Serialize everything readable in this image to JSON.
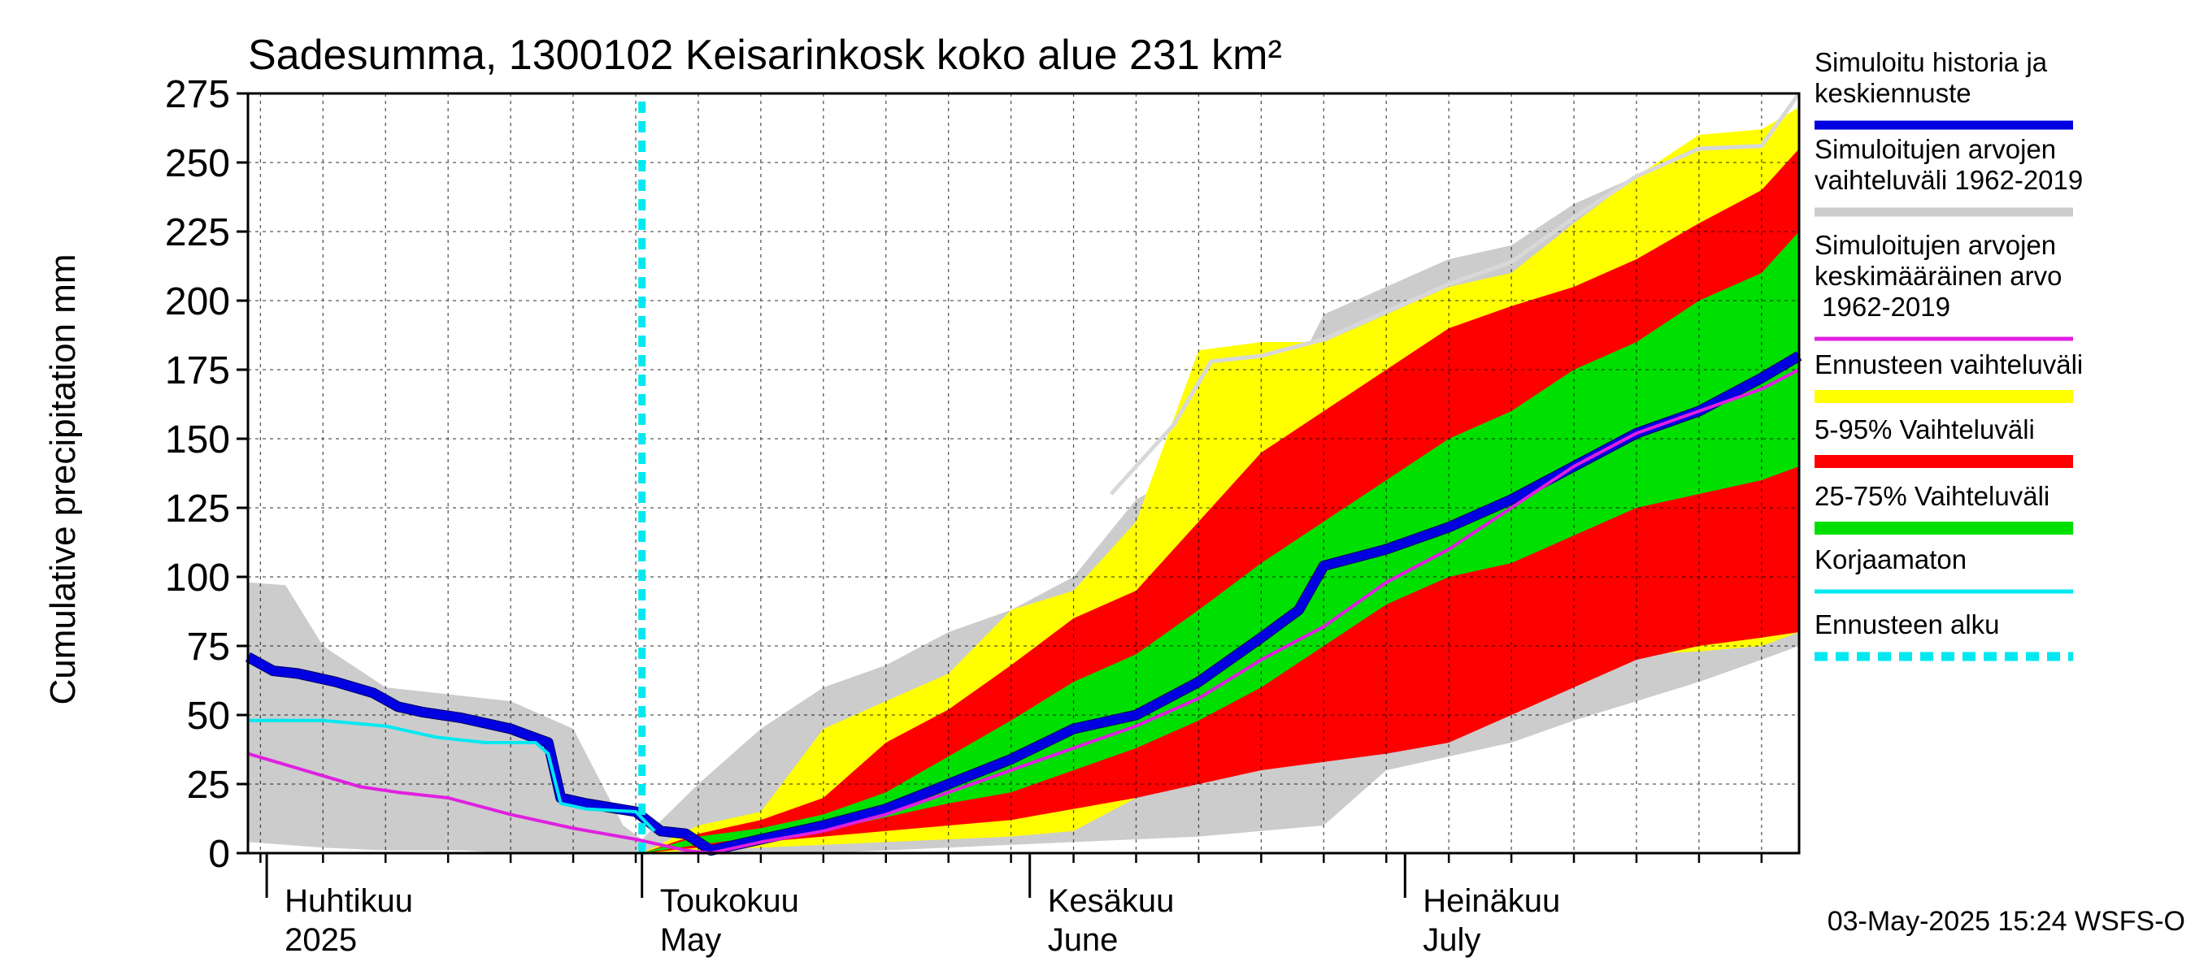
{
  "chart_data": {
    "type": "area",
    "title": "Sadesumma, 1300102 Keisarinkosk koko alue 231 km²",
    "ylabel": "Cumulative precipitation   mm",
    "xlabel": "",
    "ylim": [
      0,
      275
    ],
    "yticks": [
      0,
      25,
      50,
      75,
      100,
      125,
      150,
      175,
      200,
      225,
      250,
      275
    ],
    "x_unit": "day of year 2025",
    "xlim": [
      89,
      213
    ],
    "forecast_start": 120.5,
    "month_labels": [
      {
        "fi": "Huhtikuu",
        "en": "2025",
        "day": 91
      },
      {
        "fi": "Toukokuu",
        "en": "May",
        "day": 121
      },
      {
        "fi": "Kesäkuu",
        "en": "June",
        "day": 152
      },
      {
        "fi": "Heinäkuu",
        "en": "July",
        "day": 182
      }
    ],
    "grid": true,
    "legend_position": "right",
    "timestamp": "03-May-2025 15:24 WSFS-O",
    "legend": [
      {
        "label": "Simuloitu historia ja keskiennuste",
        "color": "#0000e0"
      },
      {
        "label": "Simuloitujen arvojen vaihteluväli 1962-2019",
        "color": "#cccccc"
      },
      {
        "label": "Simuloitujen arvojen keskimääräinen arvo 1962-2019",
        "color": "#e020e0"
      },
      {
        "label": "Ennusteen vaihteluväli",
        "color": "#ffff00"
      },
      {
        "label": "5-95% Vaihteluväli",
        "color": "#ff0000"
      },
      {
        "label": "25-75% Vaihteluväli",
        "color": "#00e000"
      },
      {
        "label": "Korjaamaton",
        "color": "#00e8f0"
      },
      {
        "label": "Ennusteen alku",
        "color": "#00e8f0"
      }
    ],
    "bands": {
      "hist_range": {
        "color": "#cccccc",
        "x": [
          89,
          92,
          95,
          100,
          106,
          110,
          115,
          119,
          120.5,
          125,
          130,
          135,
          140,
          145,
          150,
          155,
          160,
          165,
          170,
          175,
          180,
          185,
          190,
          195,
          200,
          205,
          210,
          213
        ],
        "low": [
          4,
          3,
          2,
          1,
          1,
          0,
          0,
          0,
          0,
          0,
          0,
          0,
          1,
          2,
          3,
          4,
          5,
          6,
          8,
          10,
          30,
          35,
          40,
          48,
          55,
          62,
          70,
          75
        ],
        "high": [
          98,
          97,
          75,
          60,
          57,
          55,
          45,
          10,
          5,
          25,
          45,
          60,
          68,
          80,
          88,
          100,
          128,
          140,
          150,
          195,
          205,
          215,
          220,
          235,
          245,
          250,
          255,
          270
        ]
      },
      "forecast_range": {
        "color": "#ffff00",
        "x": [
          120.5,
          125,
          130,
          135,
          140,
          145,
          150,
          155,
          160,
          165,
          170,
          175,
          180,
          185,
          190,
          195,
          200,
          205,
          210,
          213
        ],
        "low": [
          0,
          1,
          2,
          3,
          4,
          5,
          6,
          8,
          20,
          30,
          33,
          35,
          40,
          50,
          60,
          70,
          72,
          73,
          75,
          80
        ],
        "high": [
          0,
          10,
          15,
          45,
          55,
          65,
          88,
          95,
          120,
          182,
          185,
          185,
          195,
          205,
          210,
          228,
          245,
          260,
          262,
          270
        ]
      },
      "p5_95": {
        "color": "#ff0000",
        "x": [
          120.5,
          125,
          130,
          135,
          140,
          145,
          150,
          155,
          160,
          165,
          170,
          175,
          180,
          185,
          190,
          195,
          200,
          205,
          210,
          213
        ],
        "low": [
          0,
          2,
          4,
          6,
          8,
          10,
          12,
          16,
          20,
          25,
          30,
          33,
          36,
          40,
          50,
          60,
          70,
          75,
          78,
          80
        ],
        "high": [
          0,
          7,
          12,
          20,
          40,
          52,
          68,
          85,
          95,
          120,
          145,
          160,
          175,
          190,
          198,
          205,
          215,
          228,
          240,
          255
        ]
      },
      "p25_75": {
        "color": "#00e000",
        "x": [
          120.5,
          125,
          130,
          135,
          140,
          145,
          150,
          155,
          160,
          165,
          170,
          175,
          180,
          185,
          190,
          195,
          200,
          205,
          210,
          213
        ],
        "low": [
          0,
          3,
          6,
          8,
          13,
          18,
          22,
          30,
          38,
          48,
          60,
          75,
          90,
          100,
          105,
          115,
          125,
          130,
          135,
          140
        ],
        "high": [
          0,
          6,
          9,
          14,
          22,
          35,
          48,
          62,
          72,
          88,
          105,
          120,
          135,
          150,
          160,
          175,
          185,
          200,
          210,
          225
        ]
      }
    },
    "series": [
      {
        "name": "Simuloitu historia ja keskiennuste",
        "color": "#0000e0",
        "x": [
          89,
          91,
          93,
          96,
          99,
          101,
          103,
          106,
          110,
          113,
          114,
          116,
          120,
          122,
          124,
          126,
          130,
          135,
          140,
          145,
          150,
          155,
          160,
          165,
          170,
          173,
          175,
          180,
          185,
          190,
          195,
          200,
          205,
          210,
          213
        ],
        "y": [
          71,
          66,
          65,
          62,
          58,
          53,
          51,
          49,
          45,
          40,
          20,
          18,
          15,
          8,
          7,
          1,
          5,
          10,
          16,
          25,
          34,
          45,
          50,
          62,
          78,
          88,
          104,
          110,
          118,
          128,
          140,
          152,
          160,
          172,
          180
        ]
      },
      {
        "name": "Simuloitujen arvojen keskimääräinen arvo 1962-2019",
        "color": "#e020e0",
        "x": [
          89,
          92,
          95,
          98,
          101,
          105,
          110,
          115,
          120,
          124,
          126,
          130,
          135,
          140,
          145,
          150,
          155,
          160,
          165,
          170,
          175,
          180,
          185,
          190,
          195,
          200,
          205,
          210,
          213
        ],
        "y": [
          36,
          32,
          28,
          24,
          22,
          20,
          14,
          9,
          5,
          1,
          0,
          4,
          8,
          14,
          22,
          30,
          38,
          46,
          56,
          70,
          82,
          98,
          110,
          125,
          140,
          152,
          160,
          168,
          175
        ]
      },
      {
        "name": "Korjaamaton",
        "color": "#00e8f0",
        "x": [
          89,
          92,
          95,
          100,
          104,
          108,
          112,
          113,
          114,
          116,
          120,
          121.5
        ],
        "y": [
          48,
          48,
          48,
          46,
          42,
          40,
          40,
          36,
          18,
          16,
          15,
          8
        ]
      },
      {
        "name": "",
        "color": "#d8d8d8",
        "x": [
          158,
          160,
          163,
          166,
          170,
          175,
          180,
          185,
          190,
          195,
          200,
          205,
          210,
          213
        ],
        "y": [
          130,
          140,
          155,
          178,
          180,
          186,
          196,
          206,
          214,
          230,
          245,
          255,
          256,
          275
        ]
      }
    ]
  }
}
